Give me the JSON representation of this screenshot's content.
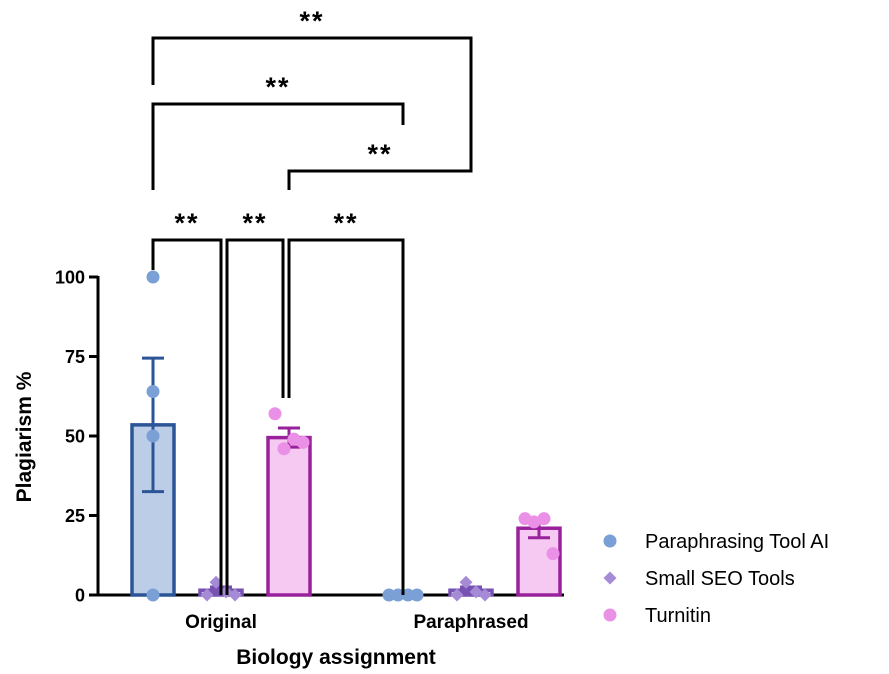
{
  "chart_data": {
    "type": "bar",
    "xlabel": "Biology assignment",
    "ylabel": "Plagiarism %",
    "ylim": [
      0,
      100
    ],
    "yticks": [
      0,
      25,
      50,
      75,
      100
    ],
    "categories": [
      "Original",
      "Paraphrased"
    ],
    "series": [
      {
        "name": "Paraphrasing Tool AI",
        "marker": "circle",
        "bar_fill": "#bccde8",
        "bar_stroke": "#2b5597",
        "point_color": "#7aa0d6",
        "means": [
          53.5,
          0
        ],
        "sem": [
          21,
          0
        ],
        "points": [
          [
            100,
            64,
            50,
            0
          ],
          [
            0,
            0,
            0,
            0
          ]
        ]
      },
      {
        "name": "Small SEO Tools",
        "marker": "diamond",
        "bar_fill": "#d9ccec",
        "bar_stroke": "#7752b3",
        "point_color": "#a58ad6",
        "means": [
          1.5,
          1.5
        ],
        "sem": [
          1,
          1
        ],
        "points": [
          [
            0,
            4,
            1,
            0
          ],
          [
            0,
            4,
            1,
            0
          ]
        ]
      },
      {
        "name": "Turnitin",
        "marker": "circle",
        "bar_fill": "#f5c9f1",
        "bar_stroke": "#99229c",
        "point_color": "#ea90e6",
        "means": [
          49.5,
          21
        ],
        "sem": [
          3,
          3
        ],
        "points": [
          [
            57,
            46,
            49,
            48
          ],
          [
            24,
            23,
            24,
            13
          ]
        ]
      }
    ],
    "significance": [
      {
        "label": "**",
        "from": "Original / Paraphrasing Tool AI",
        "to": "Original / Small SEO Tools"
      },
      {
        "label": "**",
        "from": "Original / Small SEO Tools",
        "to": "Original / Turnitin"
      },
      {
        "label": "**",
        "from": "Original / Turnitin",
        "to": "Paraphrased / Paraphrasing Tool AI"
      },
      {
        "label": "**",
        "from": "Original / Turnitin",
        "to": "Paraphrased / Small SEO Tools"
      },
      {
        "label": "**",
        "from": "Original / Paraphrasing Tool AI",
        "to": "Paraphrased / Paraphrasing Tool AI"
      },
      {
        "label": "**",
        "from": "Original / Paraphrasing Tool AI",
        "to": "Paraphrased / Small SEO Tools"
      }
    ],
    "legend_position": "bottom-right"
  }
}
